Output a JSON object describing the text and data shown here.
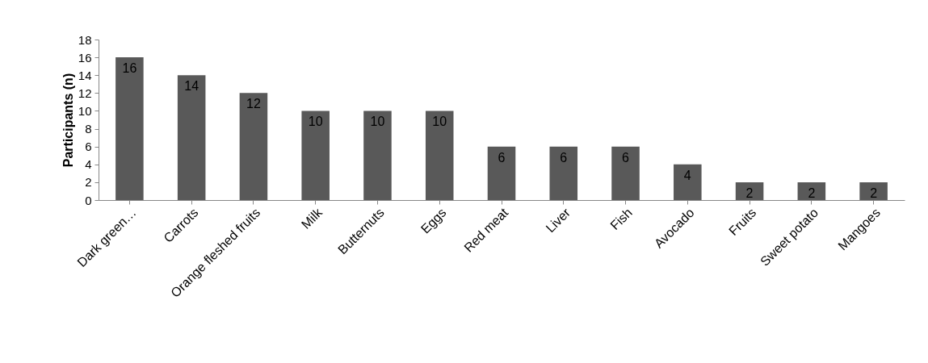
{
  "chart_data": {
    "type": "bar",
    "ylabel": "Participants (n)",
    "categories": [
      "Dark green…",
      "Carrots",
      "Orange fleshed fruits",
      "Milk",
      "Butternuts",
      "Eggs",
      "Red meat",
      "Liver",
      "Fish",
      "Avocado",
      "Fruits",
      "Sweet potato",
      "Mangoes"
    ],
    "values": [
      16,
      14,
      12,
      10,
      10,
      10,
      6,
      6,
      6,
      4,
      2,
      2,
      2
    ],
    "color": "#595959",
    "ylim": [
      0,
      18
    ],
    "yticks": [
      0,
      2,
      4,
      6,
      8,
      10,
      12,
      14,
      16,
      18
    ],
    "grid": false,
    "data_labels": true
  }
}
